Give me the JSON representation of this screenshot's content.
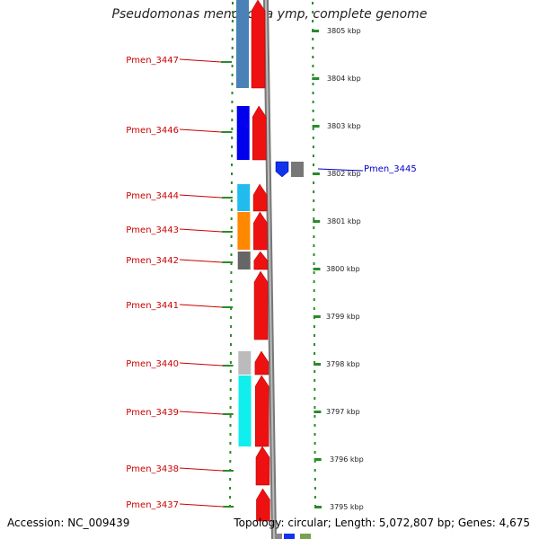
{
  "title": "Pseudomonas mendocina ymp, complete genome",
  "footer": {
    "accession": "Accession: NC_009439",
    "summary": "Topology: circular; Length: 5,072,807 bp; Genes: 4,675"
  },
  "colors": {
    "gene_red": "#ee1111",
    "ruler_green": "#2a8a2a",
    "label_red": "#cc0000",
    "label_blue": "#0000cc"
  },
  "scale_labels": [
    {
      "kbp": 3805,
      "text": "3805 kbp"
    },
    {
      "kbp": 3804,
      "text": "3804 kbp"
    },
    {
      "kbp": 3803,
      "text": "3803 kbp"
    },
    {
      "kbp": 3802,
      "text": "3802 kbp"
    },
    {
      "kbp": 3801,
      "text": "3801 kbp"
    },
    {
      "kbp": 3800,
      "text": "3800 kbp"
    },
    {
      "kbp": 3799,
      "text": "3799 kbp"
    },
    {
      "kbp": 3798,
      "text": "3798 kbp"
    },
    {
      "kbp": 3797,
      "text": "3797 kbp"
    },
    {
      "kbp": 3796,
      "text": "3796 kbp"
    },
    {
      "kbp": 3795,
      "text": "3795 kbp"
    }
  ],
  "genes": [
    {
      "name": "Pmen_3447",
      "strand": "plus",
      "cog_color": "#4a82b8"
    },
    {
      "name": "Pmen_3446",
      "strand": "plus",
      "cog_color": "#0000ee"
    },
    {
      "name": "Pmen_3445",
      "strand": "minus",
      "cog_color": "#1133ee"
    },
    {
      "name": "Pmen_3444",
      "strand": "plus",
      "cog_color": "#22bbee"
    },
    {
      "name": "Pmen_3443",
      "strand": "plus",
      "cog_color": "#ff8800"
    },
    {
      "name": "Pmen_3442",
      "strand": "plus",
      "cog_color": "#666666"
    },
    {
      "name": "Pmen_3441",
      "strand": "plus",
      "cog_color": ""
    },
    {
      "name": "Pmen_3440",
      "strand": "plus",
      "cog_color": "#bbbbbb"
    },
    {
      "name": "Pmen_3439",
      "strand": "plus",
      "cog_color": "#11eeee"
    },
    {
      "name": "Pmen_3438",
      "strand": "plus",
      "cog_color": ""
    },
    {
      "name": "Pmen_3437",
      "strand": "plus",
      "cog_color": ""
    }
  ]
}
